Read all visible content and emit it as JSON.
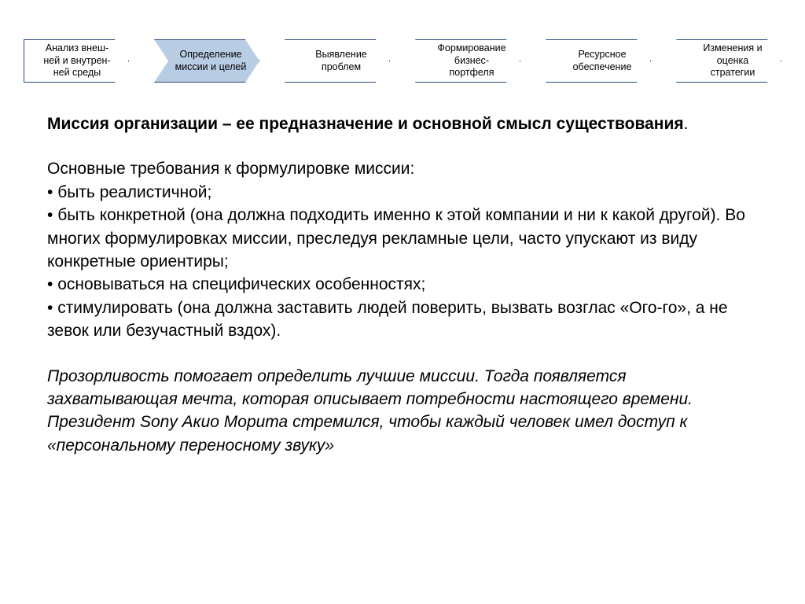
{
  "flow": {
    "steps": [
      {
        "label": "Анализ внеш-\nней и внутрен-\nней среды",
        "active": false
      },
      {
        "label": "Определение\nмиссии и целей",
        "active": true
      },
      {
        "label": "Выявление\nпроблем",
        "active": false
      },
      {
        "label": "Формирование\nбизнес-\nпортфеля",
        "active": false
      },
      {
        "label": "Ресурсное\nобеспечение",
        "active": false
      },
      {
        "label": "Изменения и\nоценка\nстратегии",
        "active": false
      }
    ],
    "step_fontsize": 12.5,
    "step_border_color": "#2a4a7a",
    "step_bg": "#ffffff",
    "step_active_bg": "#b8cce4",
    "step_height": 55,
    "step_width": 134,
    "arrow_depth": 18
  },
  "body": {
    "fontsize": 21,
    "text_color": "#000000",
    "lead_bold": "Миссия организации – ее предназначение и основной смысл существования",
    "lead_tail": ".",
    "req_intro": "Основные требования к формулировке миссии:",
    "bullets": [
      "быть реалистичной;",
      "быть конкретной (она должна подходить именно к этой компании и ни к какой другой). Во многих формулировках миссии, преследуя рекламные цели,  часто упускают из виду конкретные ориентиры;",
      "основываться на специфических особенностях;",
      "стимулировать (она должна заставить людей поверить, вызвать возглас «Ого-го»,  а не зевок или безучастный вздох)."
    ],
    "italic_para": "Прозорливость помогает определить лучшие миссии. Тогда появляется захватывающая мечта, которая описывает потребности настоящего времени. Президент Sony Акио Морита стремился, чтобы каждый человек имел  доступ к «персональному переносному звуку»"
  },
  "colors": {
    "background": "#ffffff"
  }
}
